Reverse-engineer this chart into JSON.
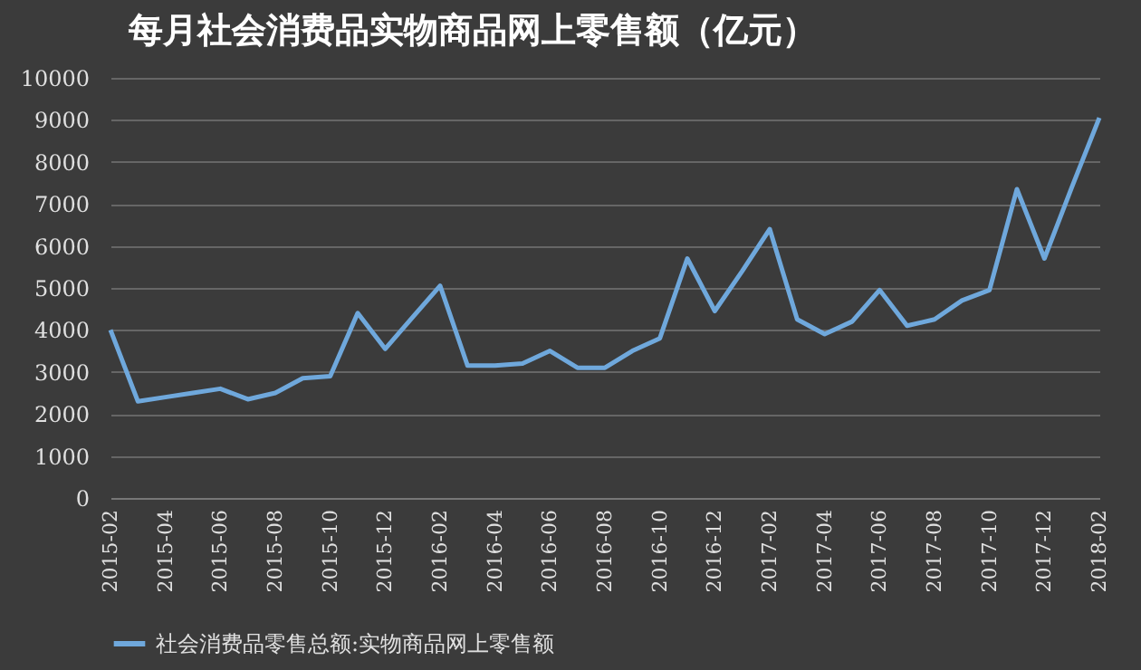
{
  "chart_data": {
    "type": "line",
    "title": "每月社会消费品实物商品网上零售额（亿元）",
    "categories": [
      "2015-02",
      null,
      "2015-04",
      null,
      "2015-06",
      null,
      "2015-08",
      null,
      "2015-10",
      null,
      "2015-12",
      null,
      "2016-02",
      null,
      "2016-04",
      null,
      "2016-06",
      null,
      "2016-08",
      null,
      "2016-10",
      null,
      "2016-12",
      null,
      "2017-02",
      null,
      "2017-04",
      null,
      "2017-06",
      null,
      "2017-08",
      null,
      "2017-10",
      null,
      "2017-12",
      null,
      "2018-02"
    ],
    "series": [
      {
        "name": "社会消费品零售总额:实物商品网上零售额",
        "color": "#6fa8dc",
        "values": [
          4000,
          2300,
          2400,
          2500,
          2600,
          2350,
          2500,
          2850,
          2900,
          4400,
          3550,
          4300,
          5050,
          3150,
          3150,
          3200,
          3500,
          3100,
          3100,
          3500,
          3800,
          5700,
          4450,
          5400,
          6400,
          4250,
          3900,
          4200,
          4950,
          4100,
          4250,
          4700,
          4950,
          7350,
          5700,
          7400,
          9050
        ]
      }
    ],
    "ylim": [
      0,
      10000
    ],
    "yticks": [
      0,
      1000,
      2000,
      3000,
      4000,
      5000,
      6000,
      7000,
      8000,
      9000,
      10000
    ],
    "grid": "y",
    "legend": "bottom",
    "marker": "none",
    "line_style": "solid"
  }
}
